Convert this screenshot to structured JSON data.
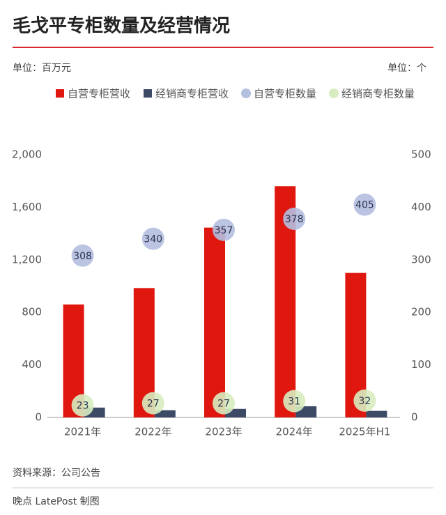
{
  "chart_data": {
    "type": "bar",
    "title": "毛戈平专柜数量及经营情况",
    "y_unit": "单位：百万元",
    "y2_unit": "单位：个",
    "categories": [
      "2021年",
      "2022年",
      "2023年",
      "2024年",
      "2025年H1"
    ],
    "series": [
      {
        "name": "自营专柜营收",
        "type": "bar",
        "color": "#e0170f",
        "values": [
          860,
          985,
          1445,
          1760,
          1100
        ]
      },
      {
        "name": "经销商专柜营收",
        "type": "bar",
        "color": "#3d4a66",
        "values": [
          75,
          55,
          65,
          85,
          50
        ]
      },
      {
        "name": "自营专柜数量",
        "type": "scatter",
        "axis": "y2",
        "color": "#b4bedf",
        "values": [
          308,
          340,
          357,
          378,
          405
        ]
      },
      {
        "name": "经销商专柜数量",
        "type": "scatter",
        "axis": "y2",
        "color": "#d7ecc0",
        "values": [
          23,
          27,
          27,
          31,
          32
        ]
      }
    ],
    "ylim": [
      0,
      2000
    ],
    "yticks": [
      0,
      400,
      800,
      {
        "value": 1200,
        "label": "1,200"
      },
      {
        "value": 1600,
        "label": "1,600"
      },
      {
        "value": 2000,
        "label": "2,000"
      }
    ],
    "y2lim": [
      0,
      500
    ],
    "y2ticks": [
      0,
      100,
      200,
      300,
      400,
      500
    ],
    "source": "资料来源：公司公告",
    "credit": "晚点 LatePost 制图"
  }
}
